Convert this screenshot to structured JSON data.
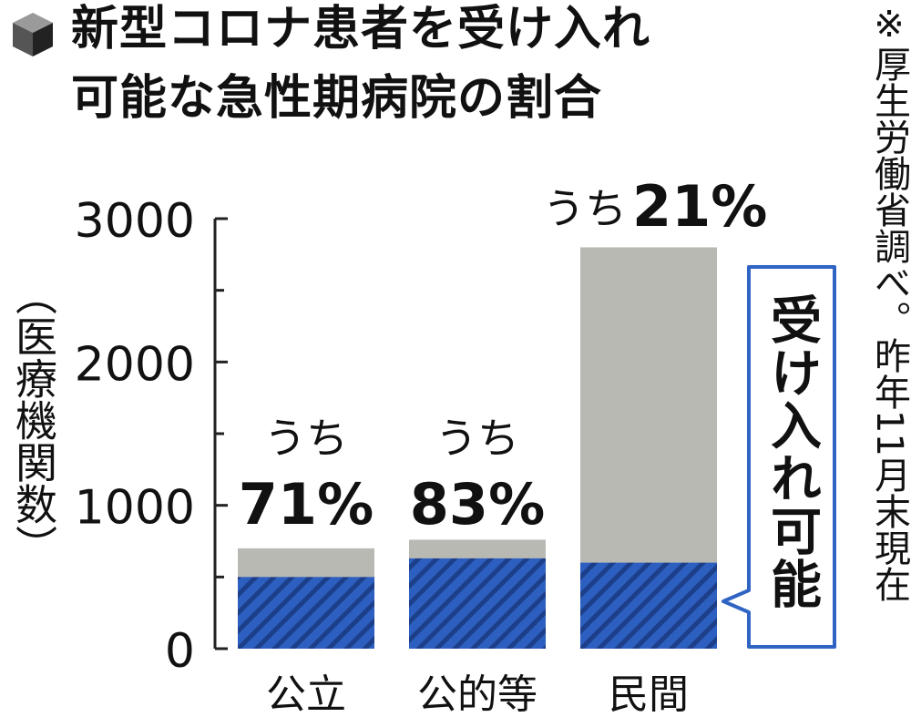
{
  "title": {
    "line1": "新型コロナ患者を受け入れ",
    "line2": "可能な急性期病院の割合"
  },
  "source_note": "※厚生労働省調べ。昨年11月末現在",
  "chart_data": {
    "type": "bar",
    "stacked": true,
    "ylabel": "（医療機関数）",
    "ylim": [
      0,
      3000
    ],
    "yticks": [
      0,
      1000,
      2000,
      3000
    ],
    "categories": [
      "公立",
      "公的等",
      "民間"
    ],
    "totals": [
      700,
      760,
      2800
    ],
    "series": [
      {
        "name": "受け入れ可能",
        "values": [
          500,
          630,
          600
        ]
      }
    ],
    "annotations": [
      {
        "category": "公立",
        "prefix": "うち",
        "value": "71%"
      },
      {
        "category": "公的等",
        "prefix": "うち",
        "value": "83%"
      },
      {
        "category": "民間",
        "prefix": "うち",
        "value": "21%"
      }
    ],
    "legend_text": "受け入れ可能",
    "colors": {
      "total": "#b9b9b3",
      "accepting": "#2c5fbf",
      "stripe": "#1d3f8a",
      "callout_border": "#2f64c4"
    }
  }
}
